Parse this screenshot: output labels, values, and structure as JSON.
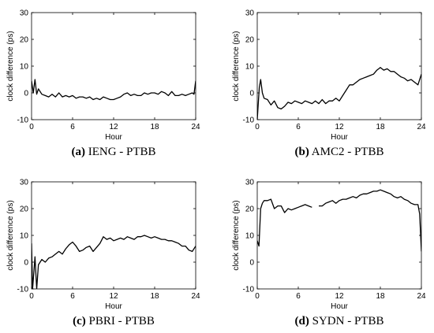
{
  "chart_data": [
    {
      "type": "line",
      "caption_label": "(a)",
      "caption_text": " IENG - PTBB",
      "xlabel": "Hour",
      "ylabel": "clock difference (ps)",
      "xlim": [
        0,
        24
      ],
      "ylim": [
        -10,
        30
      ],
      "xticks": [
        0,
        6,
        12,
        18,
        24
      ],
      "yticks": [
        -10,
        0,
        10,
        20,
        30
      ],
      "grid": false,
      "series": [
        {
          "x": [
            0,
            0.25,
            0.5,
            0.75,
            1,
            1.5,
            2,
            2.5,
            3,
            3.5,
            4,
            4.5,
            5,
            5.5,
            6,
            6.5,
            7,
            7.5,
            8,
            8.5,
            9,
            9.5,
            10,
            10.5,
            11,
            11.5,
            12,
            12.5,
            13,
            13.5,
            14,
            14.5,
            15,
            15.5,
            16,
            16.5,
            17,
            17.5,
            18,
            18.5,
            19,
            19.5,
            20,
            20.5,
            21,
            21.5,
            22,
            22.5,
            23,
            23.5,
            23.75,
            24
          ],
          "y": [
            4.5,
            0,
            5,
            -0.5,
            1.5,
            -0.5,
            -1,
            -1.5,
            -0.5,
            -1.5,
            0,
            -1.5,
            -1,
            -1.5,
            -1,
            -2,
            -1.5,
            -1.5,
            -2,
            -1.5,
            -2.5,
            -2,
            -2.5,
            -1.5,
            -2,
            -2.5,
            -2.5,
            -2,
            -1.5,
            -0.5,
            0,
            -1,
            -0.5,
            -1,
            -1,
            0,
            -0.5,
            0,
            0,
            -0.5,
            0.5,
            0,
            -1,
            0.5,
            -1,
            -1,
            -0.5,
            -1,
            -0.5,
            0,
            -0.5,
            4.5
          ]
        }
      ]
    },
    {
      "type": "line",
      "caption_label": "(b)",
      "caption_text": " AMC2 - PTBB",
      "xlabel": "Hour",
      "ylabel": "clock difference (ps)",
      "xlim": [
        0,
        24
      ],
      "ylim": [
        -10,
        30
      ],
      "xticks": [
        0,
        6,
        12,
        18,
        24
      ],
      "yticks": [
        -10,
        0,
        10,
        20,
        30
      ],
      "grid": false,
      "series": [
        {
          "x": [
            0,
            0.15,
            0.3,
            0.5,
            0.75,
            1,
            1.5,
            2,
            2.5,
            3,
            3.5,
            4,
            4.5,
            5,
            5.5,
            6,
            6.5,
            7,
            7.5,
            8,
            8.5,
            9,
            9.5,
            10,
            10.5,
            11,
            11.5,
            12,
            12.5,
            13,
            13.5,
            14,
            14.5,
            15,
            15.5,
            16,
            16.5,
            17,
            17.5,
            18,
            18.5,
            19,
            19.5,
            20,
            20.5,
            21,
            21.5,
            22,
            22.5,
            23,
            23.5,
            24
          ],
          "y": [
            -10,
            -4,
            2,
            5,
            0,
            -2,
            -2.5,
            -4.5,
            -3,
            -5.5,
            -6,
            -5,
            -3.5,
            -4,
            -3,
            -3.5,
            -4,
            -3,
            -3.5,
            -4,
            -3,
            -4,
            -2.5,
            -4,
            -3,
            -3,
            -2,
            -3,
            -1,
            1,
            3,
            3,
            4,
            5,
            5.5,
            6,
            6.5,
            7,
            8.5,
            9.5,
            8.5,
            9,
            8,
            8,
            7,
            6,
            5.5,
            4.5,
            5,
            4,
            3,
            7
          ]
        }
      ]
    },
    {
      "type": "line",
      "caption_label": "(c)",
      "caption_text": " PBRI - PTBB",
      "xlabel": "Hour",
      "ylabel": "clock difference (ps)",
      "xlim": [
        0,
        24
      ],
      "ylim": [
        -10,
        30
      ],
      "xticks": [
        0,
        6,
        12,
        18,
        24
      ],
      "yticks": [
        -10,
        0,
        10,
        20,
        30
      ],
      "grid": false,
      "series": [
        {
          "x": [
            0,
            0.15,
            0.3,
            0.5,
            0.75,
            1,
            1.5,
            2,
            2.5,
            3,
            3.5,
            4,
            4.5,
            5,
            5.5,
            6,
            6.5,
            7,
            7.5,
            8,
            8.5,
            9,
            9.5,
            10,
            10.5,
            11,
            11.5,
            12,
            12.5,
            13,
            13.5,
            14,
            14.5,
            15,
            15.5,
            16,
            16.5,
            17,
            17.5,
            18,
            18.5,
            19,
            19.5,
            20,
            20.5,
            21,
            21.5,
            22,
            22.5,
            23,
            23.5,
            24
          ],
          "y": [
            7,
            -10,
            -5,
            2,
            -10,
            -1,
            1,
            0,
            1.5,
            2,
            3,
            4,
            3,
            5,
            6.5,
            7.5,
            6,
            4,
            4.5,
            5.5,
            6,
            4,
            5.5,
            7,
            9.5,
            8.5,
            9,
            8,
            8.5,
            9,
            8.5,
            9.5,
            9,
            8.5,
            9.5,
            9.5,
            10,
            9.5,
            9,
            9.5,
            9,
            8.5,
            8.5,
            8,
            8,
            7.5,
            7,
            6,
            6,
            4.5,
            4,
            6
          ]
        }
      ]
    },
    {
      "type": "line",
      "caption_label": "(d)",
      "caption_text": " SYDN - PTBB",
      "xlabel": "Hour",
      "ylabel": "clock difference (ps)",
      "xlim": [
        0,
        24
      ],
      "ylim": [
        -10,
        30
      ],
      "xticks": [
        0,
        6,
        12,
        18,
        24
      ],
      "yticks": [
        -10,
        0,
        10,
        20,
        30
      ],
      "grid": false,
      "series": [
        {
          "x": [
            0,
            0.25,
            0.5,
            0.75,
            1,
            1.5,
            2,
            2.5,
            3,
            3.5,
            4,
            4.5,
            5,
            5.5,
            6,
            6.5,
            7,
            7.5,
            8
          ],
          "y": [
            8,
            6,
            20,
            22,
            23,
            23,
            23.5,
            20,
            21,
            21,
            18.5,
            20,
            19.5,
            20,
            20.5,
            21,
            21.5,
            21,
            20.5
          ]
        },
        {
          "x": [
            9,
            9.5,
            10,
            10.5,
            11,
            11.5,
            12,
            12.5,
            13,
            13.5,
            14,
            14.5,
            15,
            15.5,
            16,
            16.5,
            17,
            17.5,
            18,
            18.5,
            19,
            19.5,
            20,
            20.5,
            21,
            21.5,
            22,
            22.5,
            23,
            23.5,
            23.75,
            24
          ],
          "y": [
            21,
            21,
            22,
            22.5,
            23,
            22,
            23,
            23.5,
            23.5,
            24,
            24.5,
            24,
            25,
            25.5,
            25.5,
            26,
            26.5,
            26.5,
            27,
            26.5,
            26,
            25.5,
            24.5,
            24,
            24.5,
            23.5,
            23,
            22,
            21.5,
            21.5,
            18,
            4
          ]
        }
      ]
    }
  ]
}
